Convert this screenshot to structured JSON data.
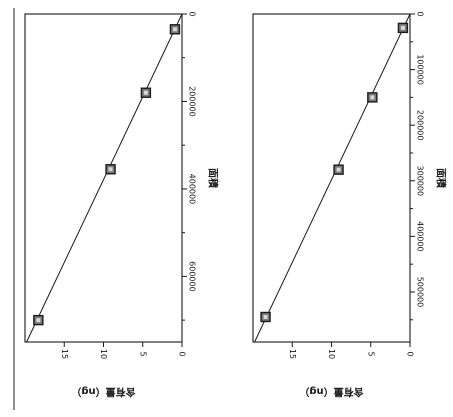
{
  "chart_data": [
    {
      "type": "scatter",
      "title": "",
      "xlabel": "面積",
      "ylabel": "含有量（ng）",
      "xlim": [
        0,
        750000
      ],
      "ylim": [
        0,
        20
      ],
      "xticks": [
        {
          "value": 0,
          "label": "0"
        },
        {
          "value": 200000,
          "label": "200000"
        },
        {
          "value": 400000,
          "label": "400000"
        },
        {
          "value": 600000,
          "label": "600000"
        }
      ],
      "yticks": [
        {
          "value": 0,
          "label": "0"
        },
        {
          "value": 5,
          "label": "5"
        },
        {
          "value": 10,
          "label": "10"
        },
        {
          "value": 15,
          "label": "15"
        }
      ],
      "points": [
        {
          "x": 35000,
          "y": 0.9
        },
        {
          "x": 180000,
          "y": 4.6
        },
        {
          "x": 355000,
          "y": 9.1
        },
        {
          "x": 700000,
          "y": 18.3
        }
      ],
      "fit_line": [
        [
          0,
          0
        ],
        [
          750000,
          19.8
        ]
      ]
    },
    {
      "type": "scatter",
      "title": "",
      "xlabel": "面積",
      "ylabel": "含有量（ng）",
      "xlim": [
        0,
        590000
      ],
      "ylim": [
        0,
        20
      ],
      "xticks": [
        {
          "value": 0,
          "label": "0"
        },
        {
          "value": 100000,
          "label": "100000"
        },
        {
          "value": 200000,
          "label": "200000"
        },
        {
          "value": 300000,
          "label": "300000"
        },
        {
          "value": 400000,
          "label": "400000"
        },
        {
          "value": 500000,
          "label": "500000"
        }
      ],
      "yticks": [
        {
          "value": 0,
          "label": "0"
        },
        {
          "value": 5,
          "label": "5"
        },
        {
          "value": 10,
          "label": "10"
        },
        {
          "value": 15,
          "label": "15"
        }
      ],
      "points": [
        {
          "x": 25000,
          "y": 0.9
        },
        {
          "x": 150000,
          "y": 4.8
        },
        {
          "x": 280000,
          "y": 9.1
        },
        {
          "x": 545000,
          "y": 18.4
        }
      ],
      "fit_line": [
        [
          0,
          0
        ],
        [
          590000,
          19.8
        ]
      ]
    }
  ],
  "colors": {
    "ink": "#1a1a1a",
    "marker_fill": "#7a7a7a"
  }
}
